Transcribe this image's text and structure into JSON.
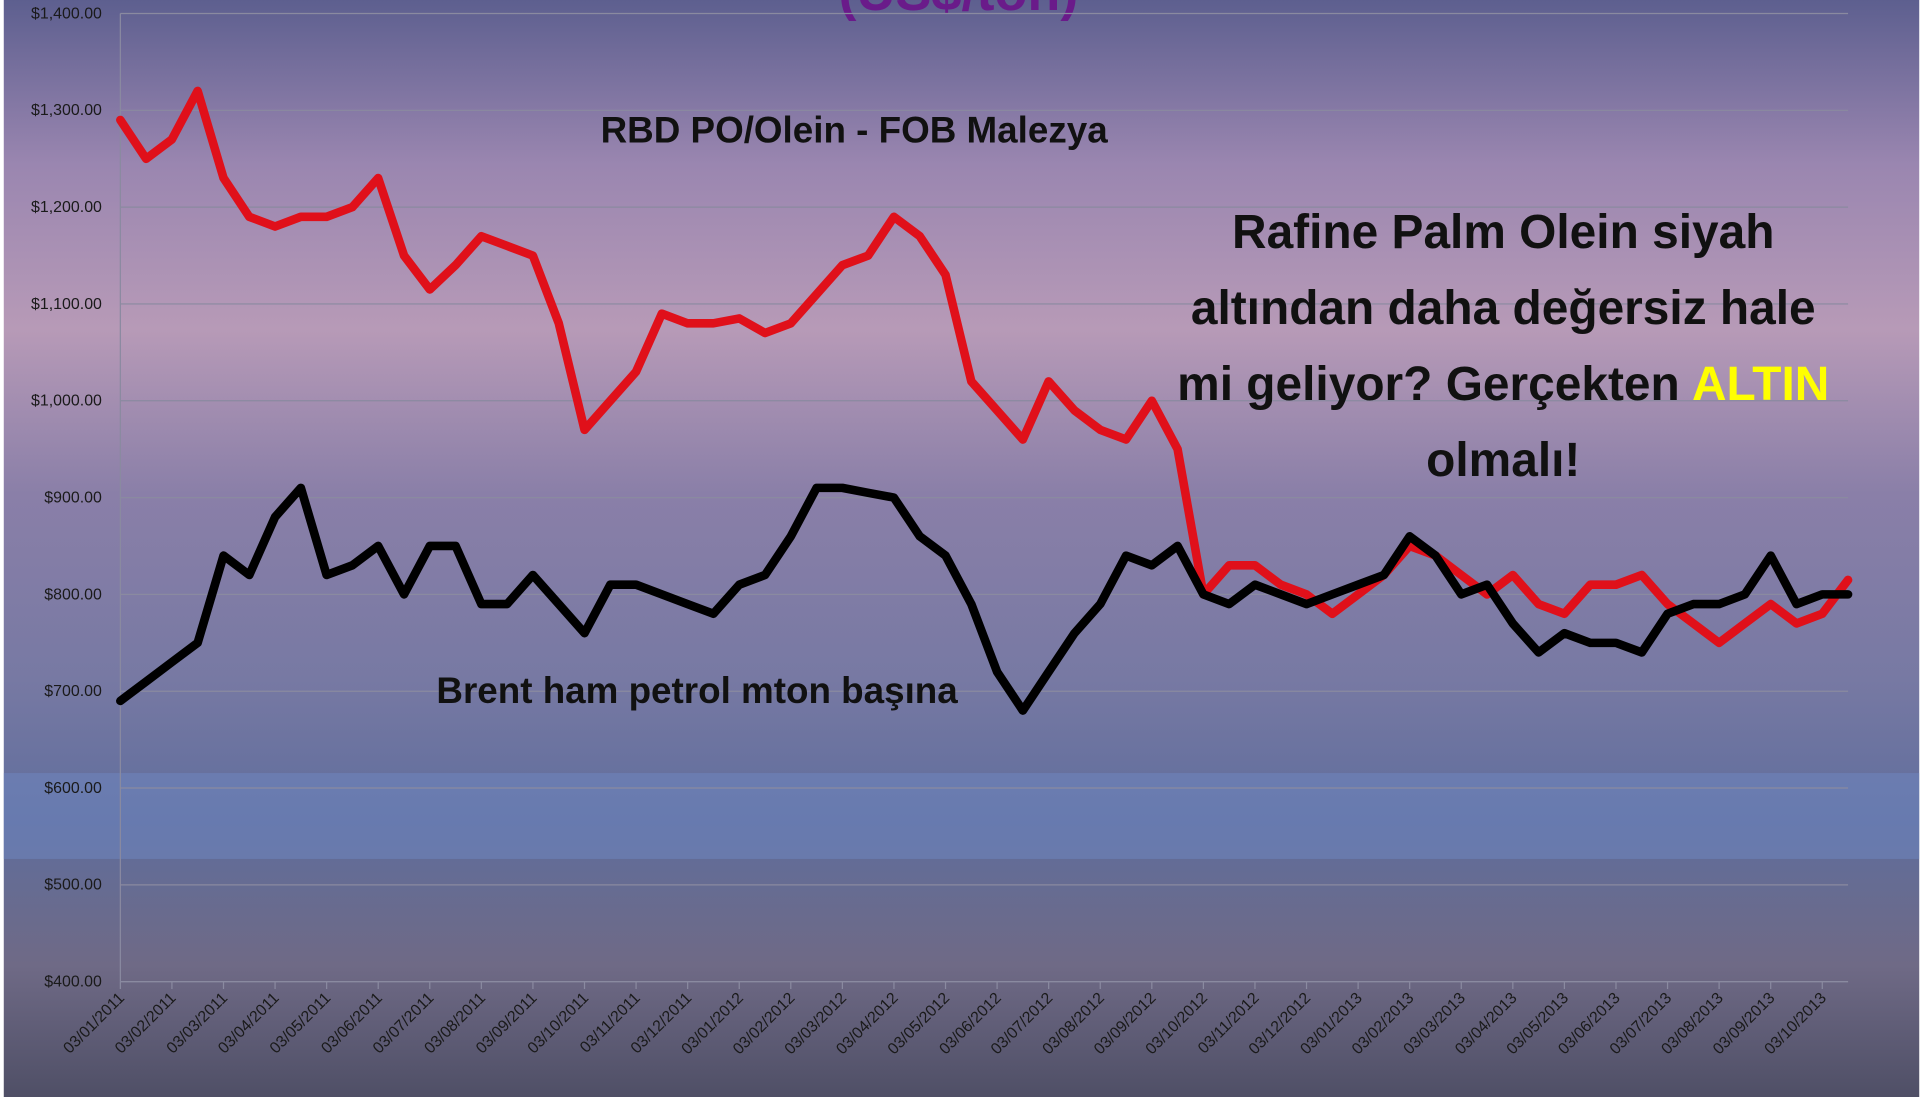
{
  "chart_data": {
    "type": "line",
    "title": "(US$/ton)",
    "categories": [
      "03/01/2011",
      null,
      "03/02/2011",
      null,
      "03/03/2011",
      null,
      "03/04/2011",
      null,
      "03/05/2011",
      null,
      "03/06/2011",
      null,
      "03/07/2011",
      null,
      "03/08/2011",
      null,
      "03/09/2011",
      null,
      "03/10/2011",
      null,
      "03/11/2011",
      null,
      "03/12/2011",
      null,
      "03/01/2012",
      null,
      "03/02/2012",
      null,
      "03/03/2012",
      null,
      "03/04/2012",
      null,
      "03/05/2012",
      null,
      "03/06/2012",
      null,
      "03/07/2012",
      null,
      "03/08/2012",
      null,
      "03/09/2012",
      null,
      "03/10/2012",
      null,
      "03/11/2012",
      null,
      "03/12/2012",
      null,
      "03/01/2013",
      null,
      "03/02/2013",
      null,
      "03/03/2013",
      null,
      "03/04/2013",
      null,
      "03/05/2013",
      null,
      "03/06/2013",
      null,
      "03/07/2013",
      null,
      "03/08/2013",
      null,
      "03/09/2013",
      null,
      "03/10/2013",
      null
    ],
    "series": [
      {
        "name": "RBD PO/Olein - FOB Malezya",
        "color": "#e0101a",
        "values": [
          1290,
          1250,
          1270,
          1320,
          1230,
          1190,
          1180,
          1190,
          1190,
          1200,
          1230,
          1150,
          1115,
          1140,
          1170,
          1160,
          1150,
          1080,
          970,
          1000,
          1030,
          1090,
          1080,
          1080,
          1085,
          1070,
          1080,
          1110,
          1140,
          1150,
          1190,
          1170,
          1130,
          1020,
          990,
          960,
          1020,
          990,
          970,
          960,
          1000,
          950,
          800,
          830,
          830,
          810,
          800,
          780,
          800,
          820,
          850,
          840,
          820,
          800,
          820,
          790,
          780,
          810,
          810,
          820,
          790,
          770,
          750,
          770,
          790,
          770,
          780,
          815
        ]
      },
      {
        "name": "Brent ham petrol mton başına",
        "color": "#000000",
        "values": [
          690,
          710,
          730,
          750,
          840,
          820,
          880,
          910,
          820,
          830,
          850,
          800,
          850,
          850,
          790,
          790,
          820,
          790,
          760,
          810,
          810,
          800,
          790,
          780,
          810,
          820,
          860,
          910,
          910,
          905,
          900,
          860,
          840,
          790,
          720,
          680,
          720,
          760,
          790,
          840,
          830,
          850,
          800,
          790,
          810,
          800,
          790,
          800,
          810,
          820,
          860,
          840,
          800,
          810,
          770,
          740,
          760,
          750,
          750,
          740,
          780,
          790,
          790,
          800,
          840,
          790,
          800,
          800
        ]
      }
    ],
    "ylim": [
      400,
      1400
    ],
    "yticks": [
      {
        "value": 400,
        "label": "$400.00"
      },
      {
        "value": 500,
        "label": "$500.00"
      },
      {
        "value": 600,
        "label": "$600.00"
      },
      {
        "value": 700,
        "label": "$700.00"
      },
      {
        "value": 800,
        "label": "$800.00"
      },
      {
        "value": 900,
        "label": "$900.00"
      },
      {
        "value": 1000,
        "label": "$1,000.00"
      },
      {
        "value": 1100,
        "label": "$1,100.00"
      },
      {
        "value": 1200,
        "label": "$1,200.00"
      },
      {
        "value": 1300,
        "label": "$1,300.00"
      },
      {
        "value": 1400,
        "label": "$1,400.00"
      }
    ],
    "grid": true,
    "annotation": {
      "lines": [
        "Rafine Palm Olein siyah",
        "altından daha değersiz hale",
        "mi geliyor? Gerçekten",
        "olmalı!"
      ],
      "highlight": "ALTIN",
      "highlight_color": "#ffff00"
    }
  }
}
